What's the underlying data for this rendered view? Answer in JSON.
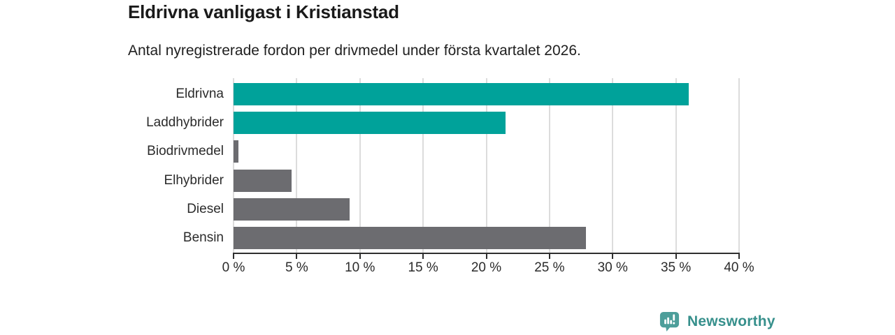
{
  "chart": {
    "title": "Eldrivna vanligast i Kristianstad",
    "subtitle": "Antal nyregistrerade fordon per drivmedel under första kvartalet 2026."
  },
  "chart_data": {
    "type": "bar",
    "orientation": "horizontal",
    "title": "Eldrivna vanligast i Kristianstad",
    "subtitle": "Antal nyregistrerade fordon per drivmedel under första kvartalet 2026.",
    "categories": [
      "Eldrivna",
      "Laddhybrider",
      "Biodrivmedel",
      "Elhybrider",
      "Diesel",
      "Bensin"
    ],
    "values": [
      36,
      21.5,
      0.4,
      4.6,
      9.2,
      27.9
    ],
    "unit": "%",
    "xlabel": "",
    "ylabel": "",
    "xlim": [
      0,
      40
    ],
    "xticks": [
      0,
      5,
      10,
      15,
      20,
      25,
      30,
      35,
      40
    ],
    "xtick_suffix": " %",
    "grid": true,
    "legend": false,
    "bar_colors": [
      "#00a29a",
      "#00a29a",
      "#6c6c70",
      "#6c6c70",
      "#6c6c70",
      "#6c6c70"
    ]
  },
  "colors": {
    "accent_teal": "#00a29a",
    "bar_gray": "#6c6c70",
    "gridline": "#dcdcdc",
    "axis": "#2f2f2f",
    "title_text": "#1a1a1a",
    "logo_teal": "#4d9e9a",
    "brand_text": "#37908c"
  },
  "footer": {
    "brand": "Newsworthy"
  }
}
